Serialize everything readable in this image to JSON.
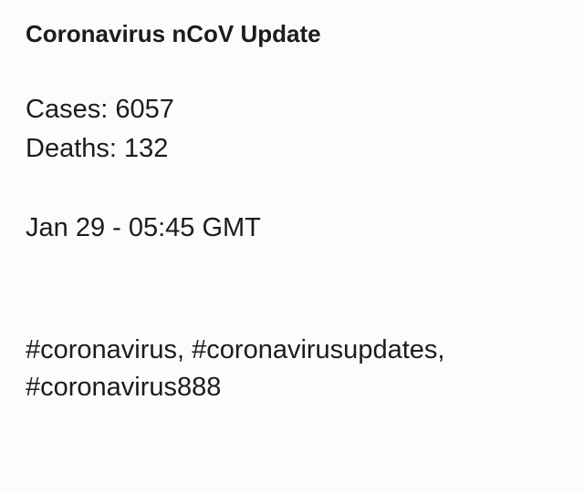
{
  "post": {
    "title": "Coronavirus nCoV Update",
    "cases_line": "Cases: 6057",
    "deaths_line": "Deaths: 132",
    "timestamp": "Jan 29 - 05:45 GMT",
    "hashtags": [
      "#coronavirus",
      "#coronavirusupdates",
      "#coronavirus888"
    ],
    "separator": ", "
  }
}
